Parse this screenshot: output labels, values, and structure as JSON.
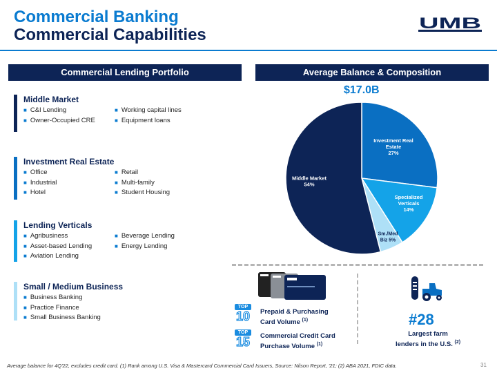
{
  "title": {
    "line1": "Commercial Banking",
    "line2": "Commercial Capabilities"
  },
  "logo": {
    "text": "UMB"
  },
  "headers": {
    "left": "Commercial Lending Portfolio",
    "right": "Average Balance & Composition"
  },
  "sections": [
    {
      "name": "Middle Market",
      "bar_color": "#0d2456",
      "col1": [
        "C&I Lending",
        "Owner-Occupied CRE"
      ],
      "col2": [
        "Working capital lines",
        "Equipment loans"
      ]
    },
    {
      "name": "Investment Real Estate",
      "bar_color": "#0a6fc2",
      "col1": [
        "Office",
        "Industrial",
        "Hotel"
      ],
      "col2": [
        "Retail",
        "Multi-family",
        "Student Housing"
      ]
    },
    {
      "name": "Lending Verticals",
      "bar_color": "#14a3e8",
      "col1": [
        "Agribusiness",
        "Asset-based Lending",
        "Aviation Lending"
      ],
      "col2": [
        "Beverage Lending",
        "Energy Lending"
      ]
    },
    {
      "name": "Small / Medium Business",
      "bar_color": "#aee0f7",
      "col1": [
        "Business Banking",
        "Practice Finance",
        "Small Business Banking"
      ],
      "col2": []
    }
  ],
  "chart_data": {
    "type": "pie",
    "title": "$17.0B",
    "slices": [
      {
        "label": "Investment Real Estate",
        "label_lines": [
          "Investment Real",
          "Estate"
        ],
        "pct_text": "27%",
        "value": 27,
        "color": "#0a6fc2"
      },
      {
        "label": "Specialized Verticals",
        "label_lines": [
          "Specialized",
          "Verticals"
        ],
        "pct_text": "14%",
        "value": 14,
        "color": "#14a3e8"
      },
      {
        "label": "Sm./Med Biz",
        "label_lines": [
          "Sm./Med",
          "Biz 5%"
        ],
        "pct_text": "",
        "value": 5,
        "color": "#aee0f7"
      },
      {
        "label": "Middle Market",
        "label_lines": [
          "Middle Market"
        ],
        "pct_text": "54%",
        "value": 54,
        "color": "#0d2456"
      }
    ]
  },
  "rankings": [
    {
      "top": "TOP",
      "num": "10",
      "line1": "Prepaid & Purchasing",
      "line2": "Card Volume",
      "ref": "(1)"
    },
    {
      "top": "TOP",
      "num": "15",
      "line1": "Commercial Credit Card",
      "line2": "Purchase Volume",
      "ref": "(1)"
    }
  ],
  "farm": {
    "rank": "#28",
    "line1": "Largest farm",
    "line2": "lenders in the U.S.",
    "ref": "(2)"
  },
  "footer": "Average balance for 4Q'22, excludes credit card. (1) Rank among U.S. Visa & Mastercard Commercial Card Issuers, Source: Nilson Report, '21; (2) ABA 2021, FDIC data.",
  "page_number": "31",
  "icons": [
    "umb-logo",
    "credit-cards-icon",
    "tractor-silo-icon"
  ]
}
